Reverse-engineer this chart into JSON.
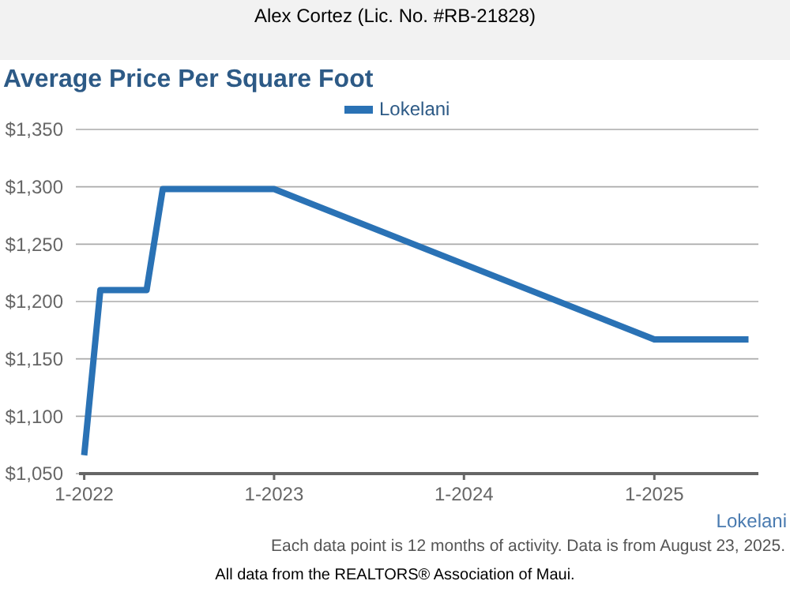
{
  "chart_data": {
    "type": "line",
    "title": "Average Price Per Square Foot",
    "subtitle": "Alex Cortez (Lic. No. #RB-21828)",
    "x": [
      "2022-01",
      "2022-02",
      "2022-05",
      "2022-06",
      "2023-01",
      "2025-01",
      "2025-07"
    ],
    "series": [
      {
        "name": "Lokelani",
        "color": "#2a72b5",
        "values": [
          1066,
          1210,
          1210,
          1298,
          1298,
          1167,
          1167
        ]
      }
    ],
    "xlim": [
      "2021-12-22",
      "2025-07-20"
    ],
    "xticks": [
      {
        "value": "2022-01",
        "label": "1-2022"
      },
      {
        "value": "2023-01",
        "label": "1-2023"
      },
      {
        "value": "2024-01",
        "label": "1-2024"
      },
      {
        "value": "2025-01",
        "label": "1-2025"
      }
    ],
    "ylim": [
      1050,
      1350
    ],
    "yticks": [
      {
        "value": 1050,
        "label": "$1,050"
      },
      {
        "value": 1100,
        "label": "$1,100"
      },
      {
        "value": 1150,
        "label": "$1,150"
      },
      {
        "value": 1200,
        "label": "$1,200"
      },
      {
        "value": 1250,
        "label": "$1,250"
      },
      {
        "value": 1300,
        "label": "$1,300"
      },
      {
        "value": 1350,
        "label": "$1,350"
      }
    ],
    "grid": "y",
    "legend": "top",
    "marker": "none",
    "line_style": "solid",
    "annotations": [
      "Lokelani",
      "Each data point is 12 months of activity. Data is from August 23, 2025.",
      "All data from the REALTORS® Association of Maui."
    ]
  }
}
